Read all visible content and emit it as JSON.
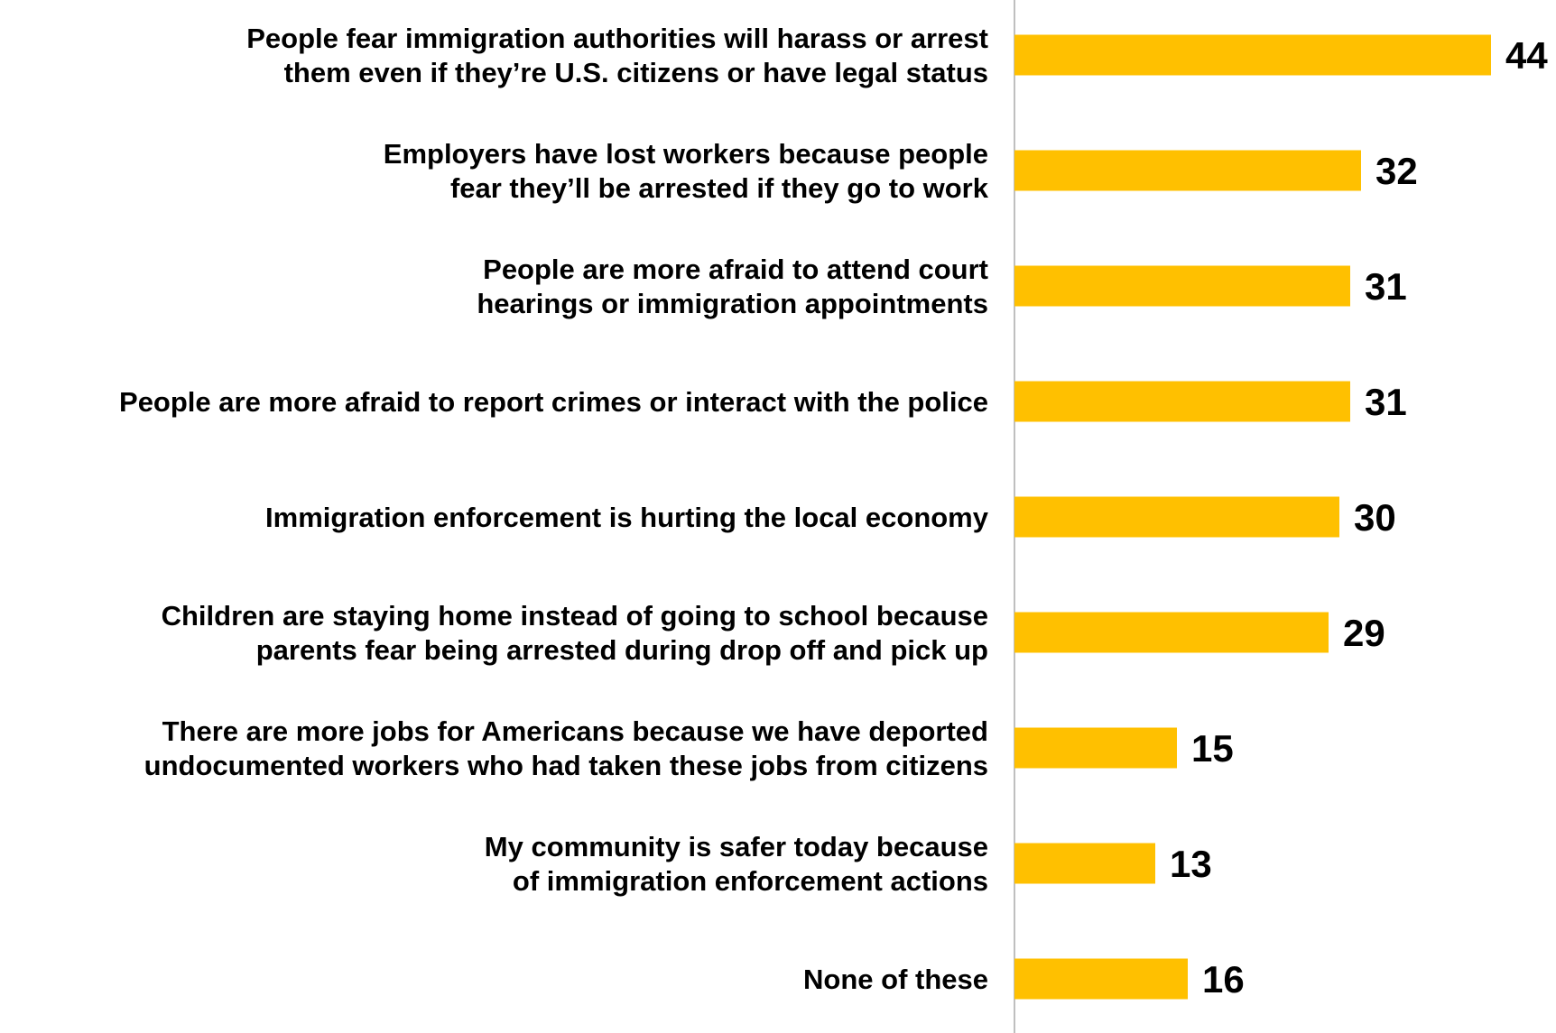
{
  "chart_data": {
    "type": "bar",
    "orientation": "horizontal",
    "categories": [
      [
        "People fear immigration authorities will harass or arrest",
        "them even if they’re U.S. citizens or have legal status"
      ],
      [
        "Employers have lost workers because people",
        "fear they’ll be arrested if they go to work"
      ],
      [
        "People are more afraid to attend court",
        "hearings or immigration appointments"
      ],
      [
        "People are more afraid to report crimes or interact with the police"
      ],
      [
        "Immigration enforcement is hurting the local economy"
      ],
      [
        "Children are staying home instead of going to school because",
        "parents fear being arrested during drop off and pick up"
      ],
      [
        "There are more jobs for Americans because we have deported",
        "undocumented workers who had taken these jobs from citizens"
      ],
      [
        "My community is safer today because",
        "of immigration enforcement actions"
      ],
      [
        "None of these"
      ]
    ],
    "values": [
      44,
      32,
      31,
      31,
      30,
      29,
      15,
      13,
      16
    ],
    "value_labels": [
      "44",
      "32",
      "31",
      "31",
      "30",
      "29",
      "15",
      "13",
      "16"
    ],
    "title": "",
    "xlabel": "",
    "ylabel": "",
    "xlim": [
      0,
      44
    ],
    "grid": false,
    "legend": "none",
    "bar_color": "#FFC000",
    "axis_color": "#BFBFBF",
    "text_color": "#000000"
  }
}
